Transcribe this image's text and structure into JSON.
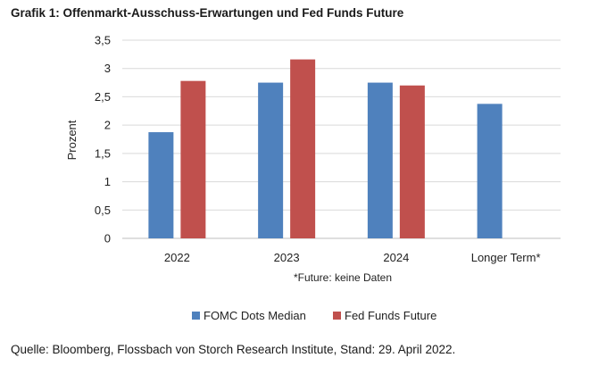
{
  "title": "Grafik 1: Offenmarkt-Ausschuss-Erwartungen und Fed Funds Future",
  "source": "Quelle: Bloomberg, Flossbach von Storch Research Institute, Stand: 29. April 2022.",
  "chart_data": {
    "type": "bar",
    "title": "Grafik 1: Offenmarkt-Ausschuss-Erwartungen und Fed Funds Future",
    "xlabel": "",
    "ylabel": "Prozent",
    "categories": [
      "2022",
      "2023",
      "2024",
      "Longer Term*"
    ],
    "series": [
      {
        "name": "FOMC Dots Median",
        "color": "#4f81bd",
        "values": [
          1.875,
          2.75,
          2.75,
          2.375
        ]
      },
      {
        "name": "Fed Funds Future",
        "color": "#c0504d",
        "values": [
          2.78,
          3.16,
          2.7,
          null
        ]
      }
    ],
    "ylim": [
      0,
      3.5
    ],
    "yticks": [
      "0",
      "0,5",
      "1",
      "1,5",
      "2",
      "2,5",
      "3",
      "3,5"
    ],
    "grid": true,
    "legend_position": "bottom",
    "note": "*Future: keine Daten"
  }
}
